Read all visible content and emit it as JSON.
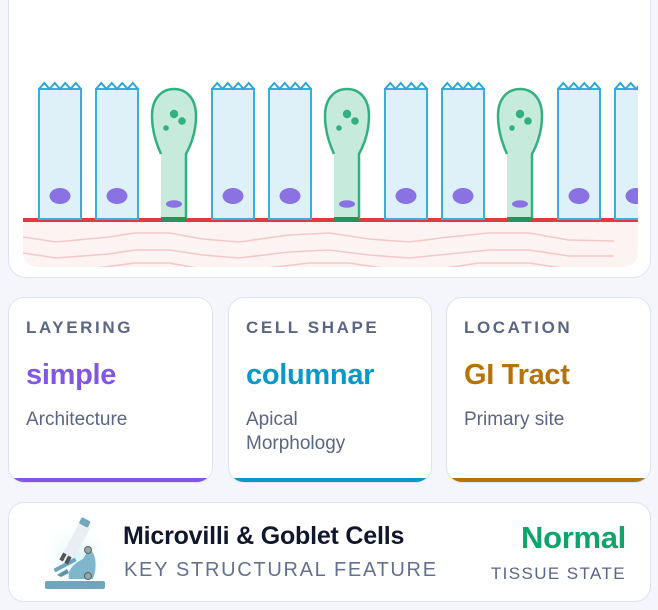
{
  "illustration": {
    "title": "Simple columnar epithelium with goblet cells",
    "colors": {
      "columnar_fill": "#dff1f8",
      "columnar_stroke": "#3aaed6",
      "microvilli": "#2aa7d6",
      "nucleus": "#8a72e3",
      "goblet_fill": "#c6eadc",
      "goblet_stroke": "#33b07f",
      "goblet_granule": "#33b07f",
      "basement_membrane": "#de3b3f",
      "connective_tissue": "#fdf3f3",
      "connective_fibers": "#f5c8c8"
    },
    "cell_pattern": [
      "columnar",
      "columnar",
      "goblet",
      "columnar",
      "columnar",
      "goblet",
      "columnar",
      "columnar",
      "goblet",
      "columnar",
      "columnar"
    ]
  },
  "stats": [
    {
      "label": "LAYERING",
      "value": "simple",
      "sub": "Architecture",
      "color": "#8256e4"
    },
    {
      "label": "CELL SHAPE",
      "value": "columnar",
      "sub": "Apical Morphology",
      "color": "#0a98c9"
    },
    {
      "label": "LOCATION",
      "value": "GI Tract",
      "sub": "Primary site",
      "color": "#b8720a"
    }
  ],
  "feature": {
    "icon": "microscope-icon",
    "title": "Microvilli & Goblet Cells",
    "subtitle": "KEY STRUCTURAL FEATURE",
    "state_value": "Normal",
    "state_label": "TISSUE STATE",
    "state_color": "#0ea46a"
  }
}
